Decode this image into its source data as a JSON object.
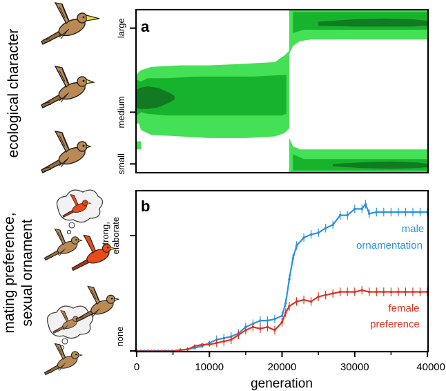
{
  "panels": {
    "a": {
      "label": "a",
      "side_label": "ecological character",
      "y_ticks": [
        "small",
        "medium",
        "large"
      ]
    },
    "b": {
      "label": "b",
      "side_label_line1": "mating preference,",
      "side_label_line2": "sexual ornament",
      "y_tick_top_line1": "strong,",
      "y_tick_top_line2": "elaborate",
      "y_tick_bottom": "none",
      "x_axis_label": "generation",
      "x_ticks": [
        "0",
        "10000",
        "20000",
        "30000",
        "40000"
      ]
    }
  },
  "colors": {
    "heat_level1": "#44e055",
    "heat_level2": "#17b32c",
    "heat_level3": "#117a22",
    "male": "#2a93e0",
    "female": "#dd3322",
    "bird_body": "#b98a55",
    "bird_red": "#e84a1a",
    "beak": "#f0dd30"
  },
  "chart_data": [
    {
      "type": "heatmap",
      "panel": "a",
      "title": "",
      "xlabel": "",
      "ylabel": "ecological character",
      "xlim": [
        0,
        40000
      ],
      "ylim": [
        0,
        1
      ],
      "y_tick_positions": [
        0.05,
        0.37,
        0.89
      ],
      "y_tick_labels": [
        "small",
        "medium",
        "large"
      ],
      "levels": [
        {
          "level": 1,
          "bands": [
            {
              "x": [
                0,
                300,
                600,
                2000,
                6000,
                10000,
                15000,
                19000,
                20300,
                21000
              ],
              "lo": [
                0.3,
                0.3,
                0.26,
                0.23,
                0.22,
                0.21,
                0.21,
                0.22,
                0.24,
                0.27
              ],
              "hi": [
                0.6,
                0.62,
                0.63,
                0.65,
                0.66,
                0.66,
                0.67,
                0.68,
                0.72,
                0.75
              ]
            },
            {
              "x": [
                21000,
                21500,
                22500,
                24000,
                30000,
                36000,
                40000
              ],
              "lo": [
                0.73,
                0.78,
                0.81,
                0.82,
                0.82,
                0.82,
                0.82
              ],
              "hi": [
                1.0,
                1.0,
                1.0,
                1.0,
                1.0,
                1.0,
                1.0
              ]
            },
            {
              "x": [
                21000,
                21500,
                22500,
                24000,
                30000,
                36000,
                40000
              ],
              "lo": [
                0.0,
                0.0,
                0.0,
                0.0,
                0.0,
                0.0,
                0.0
              ],
              "hi": [
                0.21,
                0.16,
                0.14,
                0.14,
                0.14,
                0.14,
                0.14
              ]
            },
            {
              "x": [
                0,
                300,
                600
              ],
              "lo": [
                0.14,
                0.14,
                0.14
              ],
              "hi": [
                0.19,
                0.19,
                0.19
              ]
            }
          ]
        },
        {
          "level": 2,
          "bands": [
            {
              "x": [
                0,
                600,
                1500,
                4000,
                8000,
                12000,
                16000,
                20000,
                20600
              ],
              "lo": [
                0.35,
                0.37,
                0.36,
                0.35,
                0.35,
                0.35,
                0.35,
                0.35,
                0.36
              ],
              "hi": [
                0.57,
                0.56,
                0.58,
                0.58,
                0.59,
                0.59,
                0.59,
                0.6,
                0.6
              ]
            },
            {
              "x": [
                21500,
                23000,
                26000,
                30000,
                34000,
                38000,
                40000
              ],
              "lo": [
                0.86,
                0.88,
                0.88,
                0.88,
                0.88,
                0.88,
                0.88
              ],
              "hi": [
                0.99,
                0.99,
                0.99,
                0.99,
                0.99,
                0.99,
                0.99
              ]
            },
            {
              "x": [
                21500,
                23000,
                26000,
                30000,
                34000,
                38000,
                40000
              ],
              "lo": [
                0.01,
                0.01,
                0.01,
                0.01,
                0.01,
                0.01,
                0.01
              ],
              "hi": [
                0.11,
                0.08,
                0.08,
                0.08,
                0.08,
                0.08,
                0.08
              ]
            }
          ]
        },
        {
          "level": 3,
          "bands": [
            {
              "x": [
                0,
                400,
                1500,
                3000,
                4500,
                5200
              ],
              "lo": [
                0.4,
                0.39,
                0.39,
                0.4,
                0.43,
                0.45
              ],
              "hi": [
                0.51,
                0.52,
                0.53,
                0.52,
                0.49,
                0.47
              ]
            },
            {
              "x": [
                25000,
                30000,
                34000,
                38000,
                40000
              ],
              "lo": [
                0.905,
                0.9,
                0.9,
                0.9,
                0.905
              ],
              "hi": [
                0.93,
                0.945,
                0.95,
                0.945,
                0.935
              ]
            },
            {
              "x": [
                27000,
                31000,
                35000,
                38500,
                40000
              ],
              "lo": [
                0.035,
                0.025,
                0.02,
                0.025,
                0.03
              ],
              "hi": [
                0.05,
                0.06,
                0.065,
                0.06,
                0.05
              ]
            }
          ]
        }
      ]
    },
    {
      "type": "line",
      "panel": "b",
      "title": "",
      "xlabel": "generation",
      "ylabel": "mating preference, sexual ornament",
      "xlim": [
        0,
        40000
      ],
      "ylim": [
        0,
        1
      ],
      "y_tick_positions": [
        0.0,
        0.83
      ],
      "y_tick_labels": [
        "none",
        "strong, elaborate"
      ],
      "series": [
        {
          "name": "male ornamentation",
          "color": "#2a93e0",
          "x": [
            0,
            5000,
            6000,
            7000,
            8000,
            9000,
            10000,
            11000,
            12000,
            13000,
            14000,
            15000,
            16000,
            17000,
            18000,
            19000,
            20000,
            20500,
            21000,
            21500,
            22000,
            23000,
            24000,
            25000,
            26000,
            27000,
            28000,
            29000,
            30000,
            31000,
            31500,
            32000,
            33000,
            34000,
            35000,
            36000,
            37000,
            38000,
            39000,
            40000
          ],
          "y": [
            0.0,
            0.0,
            0.005,
            0.01,
            0.02,
            0.03,
            0.05,
            0.07,
            0.08,
            0.09,
            0.11,
            0.15,
            0.17,
            0.19,
            0.19,
            0.2,
            0.22,
            0.3,
            0.45,
            0.58,
            0.66,
            0.71,
            0.73,
            0.74,
            0.77,
            0.79,
            0.85,
            0.85,
            0.89,
            0.89,
            0.92,
            0.86,
            0.87,
            0.87,
            0.87,
            0.87,
            0.87,
            0.87,
            0.87,
            0.87
          ],
          "label_line1": "male",
          "label_line2": "ornamentation"
        },
        {
          "name": "female preference",
          "color": "#dd3322",
          "x": [
            0,
            5000,
            6000,
            7000,
            8000,
            9000,
            10000,
            11000,
            12000,
            13000,
            14000,
            15000,
            16000,
            17000,
            18000,
            19000,
            20000,
            20500,
            21000,
            22000,
            23000,
            24000,
            25000,
            26000,
            27000,
            28000,
            29000,
            30000,
            31000,
            32000,
            33000,
            34000,
            35000,
            36000,
            37000,
            38000,
            39000,
            40000
          ],
          "y": [
            0.0,
            0.0,
            0.005,
            0.01,
            0.03,
            0.04,
            0.04,
            0.05,
            0.06,
            0.07,
            0.1,
            0.13,
            0.15,
            0.14,
            0.15,
            0.13,
            0.18,
            0.24,
            0.28,
            0.31,
            0.32,
            0.31,
            0.34,
            0.35,
            0.36,
            0.37,
            0.37,
            0.37,
            0.38,
            0.37,
            0.37,
            0.37,
            0.37,
            0.37,
            0.37,
            0.37,
            0.37,
            0.37
          ],
          "label_line1": "female",
          "label_line2": "preference"
        }
      ]
    }
  ]
}
